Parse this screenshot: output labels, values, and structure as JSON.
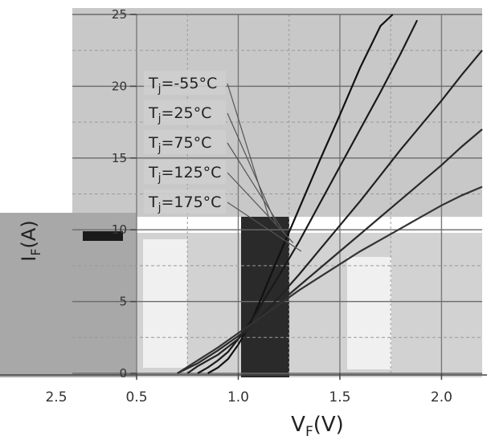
{
  "chart_data": {
    "type": "line",
    "title": "",
    "xlabel": "V",
    "xlabel_sub": "F",
    "xlabel_unit": "(V)",
    "ylabel": "I",
    "ylabel_sub": "F",
    "ylabel_unit": "(A)",
    "xlim": [
      0.5,
      2.2
    ],
    "ylim": [
      0,
      25
    ],
    "xticks": [
      0.5,
      1.0,
      1.5,
      2.0
    ],
    "xtick_labels": [
      "0.5",
      "1.0",
      "1.5",
      "2.0"
    ],
    "extra_xtick_label": "2.5",
    "yticks": [
      0,
      5,
      10,
      15,
      20,
      25
    ],
    "ytick_labels": [
      "0",
      "5",
      "10",
      "15",
      "20",
      "25"
    ],
    "grid": true,
    "legend_position": "upper-left",
    "series": [
      {
        "name": "Tj=-55°C",
        "sub": "j",
        "pre": "T",
        "post": "=-55°C",
        "x": [
          0.85,
          0.9,
          0.95,
          1.0,
          1.05,
          1.1,
          1.15,
          1.2,
          1.3,
          1.4,
          1.5,
          1.6,
          1.7,
          1.76
        ],
        "y": [
          0,
          0.4,
          1.0,
          2.0,
          3.2,
          4.8,
          6.5,
          8.2,
          11.5,
          14.8,
          18.0,
          21.3,
          24.2,
          25.0
        ]
      },
      {
        "name": "Tj=25°C",
        "sub": "j",
        "pre": "T",
        "post": "=25°C",
        "x": [
          0.8,
          0.85,
          0.9,
          0.95,
          1.0,
          1.05,
          1.1,
          1.2,
          1.3,
          1.4,
          1.5,
          1.6,
          1.7,
          1.8,
          1.88
        ],
        "y": [
          0,
          0.4,
          0.9,
          1.5,
          2.4,
          3.4,
          4.5,
          6.8,
          9.2,
          11.8,
          14.4,
          17.0,
          19.6,
          22.3,
          24.6
        ]
      },
      {
        "name": "Tj=75°C",
        "sub": "j",
        "pre": "T",
        "post": "=75°C",
        "x": [
          0.75,
          0.8,
          0.9,
          1.0,
          1.1,
          1.2,
          1.3,
          1.4,
          1.5,
          1.6,
          1.7,
          1.8,
          1.9,
          2.0,
          2.1,
          2.2
        ],
        "y": [
          0,
          0.5,
          1.3,
          2.4,
          3.8,
          5.3,
          6.9,
          8.6,
          10.3,
          12.0,
          13.8,
          15.6,
          17.3,
          19.0,
          20.8,
          22.5
        ]
      },
      {
        "name": "Tj=125°C",
        "sub": "j",
        "pre": "T",
        "post": "=125°C",
        "x": [
          0.7,
          0.8,
          0.9,
          1.0,
          1.1,
          1.2,
          1.3,
          1.4,
          1.5,
          1.6,
          1.7,
          1.8,
          1.9,
          2.0,
          2.1,
          2.2
        ],
        "y": [
          0,
          0.7,
          1.6,
          2.6,
          3.7,
          4.9,
          6.1,
          7.3,
          8.5,
          9.7,
          10.9,
          12.1,
          13.3,
          14.5,
          15.8,
          17.0
        ]
      },
      {
        "name": "Tj=175°C",
        "sub": "j",
        "pre": "T",
        "post": "=175°C",
        "x": [
          0.7,
          0.8,
          0.9,
          1.0,
          1.1,
          1.2,
          1.3,
          1.4,
          1.5,
          1.6,
          1.7,
          1.8,
          1.9,
          2.0,
          2.1,
          2.2
        ],
        "y": [
          0,
          0.9,
          1.8,
          2.8,
          3.8,
          4.8,
          5.8,
          6.7,
          7.6,
          8.5,
          9.3,
          10.1,
          10.9,
          11.7,
          12.4,
          13.0
        ]
      }
    ]
  }
}
